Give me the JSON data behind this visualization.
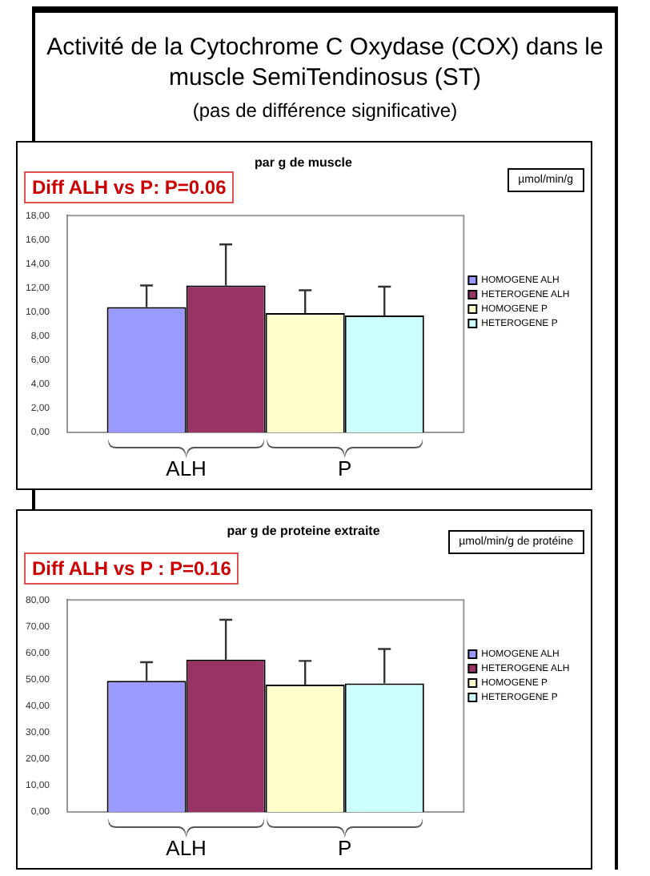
{
  "chart_data": [
    {
      "type": "bar",
      "title": "Activité de la Cytochrome C Oxydase (COX) dans le muscle  SemiTendinosus (ST)",
      "subtitle": "(pas de différence significative)",
      "ylabel": "µmol/min/g",
      "annotations": [
        "par g de muscle",
        "Diff ALH vs P: P=0.06",
        "ALH",
        "P"
      ],
      "categories": [
        null
      ],
      "series": [
        {
          "name": "HOMOGENE ALH",
          "color": "#9999ff",
          "values": [
            10.4
          ],
          "errors": [
            [
              10.4,
              12.2
            ]
          ]
        },
        {
          "name": "HETEROGENE ALH",
          "color": "#993366",
          "values": [
            12.2
          ],
          "errors": [
            [
              12.2,
              15.6
            ]
          ]
        },
        {
          "name": "HOMOGENE P",
          "color": "#ffffcc",
          "values": [
            9.9
          ],
          "errors": [
            [
              9.9,
              11.8
            ]
          ]
        },
        {
          "name": "HETEROGENE P",
          "color": "#ccffff",
          "values": [
            9.7
          ],
          "errors": [
            [
              9.7,
              12.1
            ]
          ]
        }
      ],
      "ylim": [
        0,
        18
      ],
      "yticks": [
        {
          "value": 0,
          "label": "0,00"
        },
        {
          "value": 2,
          "label": "2,00"
        },
        {
          "value": 4,
          "label": "4,00"
        },
        {
          "value": 6,
          "label": "6,00"
        },
        {
          "value": 8,
          "label": "8,00"
        },
        {
          "value": 10,
          "label": "10,00"
        },
        {
          "value": 12,
          "label": "12,00"
        },
        {
          "value": 14,
          "label": "14,00"
        },
        {
          "value": 16,
          "label": "16,00"
        },
        {
          "value": 18,
          "label": "18,00"
        }
      ],
      "grid": false,
      "legend": "right"
    },
    {
      "type": "bar",
      "title": "par g de proteine extraite",
      "ylabel": "µmol/min/g de protéine",
      "annotations": [
        "Diff ALH vs P : P=0.16",
        "ALH",
        "P"
      ],
      "categories": [
        null
      ],
      "series": [
        {
          "name": "HOMOGENE ALH",
          "color": "#9999ff",
          "values": [
            49.5
          ],
          "errors": [
            [
              49.5,
              56.5
            ]
          ]
        },
        {
          "name": "HETEROGENE ALH",
          "color": "#993366",
          "values": [
            57.5
          ],
          "errors": [
            [
              57.5,
              72.5
            ]
          ]
        },
        {
          "name": "HOMOGENE P",
          "color": "#ffffcc",
          "values": [
            48
          ],
          "errors": [
            [
              48,
              57
            ]
          ]
        },
        {
          "name": "HETEROGENE P",
          "color": "#ccffff",
          "values": [
            48.5
          ],
          "errors": [
            [
              48.5,
              61.5
            ]
          ]
        }
      ],
      "ylim": [
        0,
        80
      ],
      "yticks": [
        {
          "value": 0,
          "label": "0,00"
        },
        {
          "value": 10,
          "label": "10,00"
        },
        {
          "value": 20,
          "label": "20,00"
        },
        {
          "value": 30,
          "label": "30,00"
        },
        {
          "value": 40,
          "label": "40,00"
        },
        {
          "value": 50,
          "label": "50,00"
        },
        {
          "value": 60,
          "label": "60,00"
        },
        {
          "value": 70,
          "label": "70,00"
        },
        {
          "value": 80,
          "label": "80,00"
        }
      ],
      "grid": false,
      "legend": "right"
    }
  ]
}
